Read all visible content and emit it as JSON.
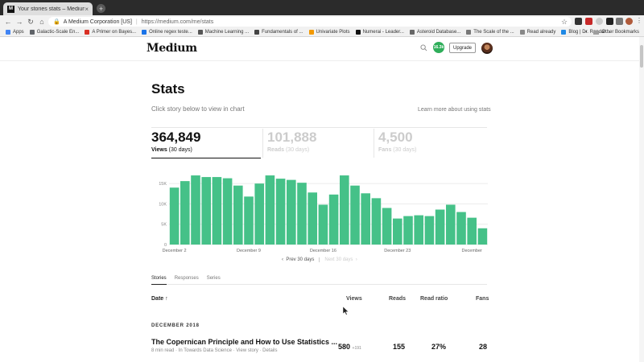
{
  "browser": {
    "tab_title": "Your stories stats – Medium",
    "tab_favicon": "M",
    "tab_close": "×",
    "new_tab": "+",
    "url_org": "A Medium Corporation [US]",
    "url": "https://medium.com/me/stats",
    "bookmarks": [
      "Apps",
      "Galactic-Scale En...",
      "A Primer on Bayes...",
      "Online regex teste...",
      "Machine Learning ...",
      "Fundamentals of ...",
      "Univariate Plots",
      "Numerai - Leader...",
      "Asteroid Database...",
      "The Scale of the ...",
      "Read already",
      "Blog | Dr. Randal ..."
    ],
    "bookmarks_more": "»",
    "other_bookmarks": "Other Bookmarks"
  },
  "header": {
    "logo": "Medium",
    "notification_count": "16.3k",
    "upgrade_label": "Upgrade"
  },
  "stats_page": {
    "title": "Stats",
    "subtitle": "Click story below to view in chart",
    "learn_link": "Learn more about using stats",
    "stats": [
      {
        "number": "364,849",
        "label": "Views",
        "period": "(30 days)"
      },
      {
        "number": "101,888",
        "label": "Reads",
        "period": "(30 days)"
      },
      {
        "number": "4,500",
        "label": "Fans",
        "period": "(30 days)"
      }
    ],
    "prev_label": "Prev 30 days",
    "next_label": "Next 30 days",
    "tabs": [
      "Stories",
      "Responses",
      "Series"
    ],
    "table_headers": {
      "date": "Date",
      "views": "Views",
      "reads": "Reads",
      "read_ratio": "Read ratio",
      "fans": "Fans"
    },
    "month": "DECEMBER 2018",
    "story": {
      "title": "The Copernican Principle and How to Use Statistics ...",
      "meta": "8 min read · In Towards Data Science · View story · Details",
      "views": "580",
      "views_delta": "+191",
      "reads": "155",
      "read_ratio": "27%",
      "fans": "28"
    }
  },
  "chart_data": {
    "type": "bar",
    "series_name": "Views",
    "color": "#45c188",
    "values": [
      14000,
      15600,
      17000,
      16600,
      16600,
      16300,
      14500,
      11800,
      15000,
      17000,
      16200,
      15900,
      15200,
      12800,
      9800,
      12300,
      17000,
      14500,
      12600,
      11400,
      9000,
      6400,
      7000,
      7200,
      7000,
      8600,
      9800,
      8000,
      6600,
      4000
    ],
    "yticks": [
      "0",
      "5K",
      "10K",
      "15K"
    ],
    "ytick_values": [
      0,
      5000,
      10000,
      15000
    ],
    "ylim": [
      0,
      18000
    ],
    "xtick_labels": [
      "December 2",
      "December 9",
      "December 16",
      "December 23",
      "December"
    ],
    "xtick_indices": [
      0,
      7,
      14,
      21,
      28
    ],
    "grid": true
  }
}
